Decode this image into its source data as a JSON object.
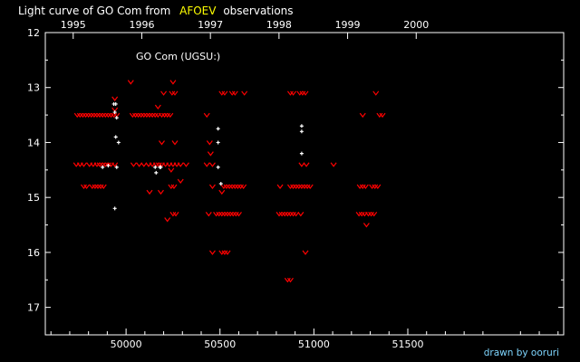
{
  "title": {
    "prefix": "Light curve of GO Com from",
    "source": "AFOEV",
    "suffix": "observations"
  },
  "credit": "drawn by ooruri",
  "colors": {
    "background": "#000000",
    "axis": "#ffffff",
    "source_highlight": "#ffff00",
    "visual_marks": "#ff0000",
    "other_marks": "#ffffff",
    "credit": "#7fd6ff"
  },
  "chart_data": {
    "type": "scatter",
    "annotation": "GO Com (UGSU:)",
    "x_axis": {
      "label": "",
      "range": [
        49570,
        52330
      ],
      "ticks": [
        50000,
        50500,
        51000,
        51500
      ],
      "tick_labels": [
        "50000",
        "50500",
        "51000",
        "51500"
      ]
    },
    "top_axis": {
      "ticks": [
        1995,
        1996,
        1997,
        1998,
        1999,
        2000
      ],
      "tick_labels": [
        "1995",
        "1996",
        "1997",
        "1998",
        "1999",
        "2000"
      ]
    },
    "y_axis": {
      "label": "",
      "range": [
        12,
        17.5
      ],
      "inverted": true,
      "ticks": [
        12,
        13,
        14,
        15,
        16,
        17
      ],
      "tick_labels": [
        "12",
        "13",
        "14",
        "15",
        "16",
        "17"
      ]
    },
    "grid": false,
    "series": [
      {
        "marker": "v",
        "color": "#ff0000",
        "points": [
          [
            49740,
            13.5
          ],
          [
            49755,
            13.5
          ],
          [
            49770,
            13.5
          ],
          [
            49785,
            13.5
          ],
          [
            49800,
            13.5
          ],
          [
            49815,
            13.5
          ],
          [
            49830,
            13.5
          ],
          [
            49845,
            13.5
          ],
          [
            49860,
            13.5
          ],
          [
            49875,
            13.5
          ],
          [
            49890,
            13.5
          ],
          [
            49905,
            13.5
          ],
          [
            49920,
            13.5
          ],
          [
            49935,
            13.5
          ],
          [
            49950,
            13.5
          ],
          [
            49735,
            14.4
          ],
          [
            49755,
            14.4
          ],
          [
            49775,
            14.4
          ],
          [
            49805,
            14.4
          ],
          [
            49825,
            14.4
          ],
          [
            49845,
            14.4
          ],
          [
            49860,
            14.4
          ],
          [
            49875,
            14.4
          ],
          [
            49890,
            14.4
          ],
          [
            49905,
            14.4
          ],
          [
            49920,
            14.4
          ],
          [
            49940,
            14.4
          ],
          [
            49775,
            14.8
          ],
          [
            49790,
            14.8
          ],
          [
            49820,
            14.8
          ],
          [
            49835,
            14.8
          ],
          [
            49850,
            14.8
          ],
          [
            49865,
            14.8
          ],
          [
            49880,
            14.8
          ],
          [
            49940,
            13.2
          ],
          [
            49940,
            13.4
          ],
          [
            50025,
            12.9
          ],
          [
            50035,
            13.5
          ],
          [
            50050,
            13.5
          ],
          [
            50065,
            13.5
          ],
          [
            50080,
            13.5
          ],
          [
            50095,
            13.5
          ],
          [
            50110,
            13.5
          ],
          [
            50125,
            13.5
          ],
          [
            50140,
            13.5
          ],
          [
            50155,
            13.5
          ],
          [
            50170,
            13.5
          ],
          [
            50170,
            13.35
          ],
          [
            50190,
            13.5
          ],
          [
            50205,
            13.5
          ],
          [
            50220,
            13.5
          ],
          [
            50235,
            13.5
          ],
          [
            50040,
            14.4
          ],
          [
            50070,
            14.4
          ],
          [
            50095,
            14.4
          ],
          [
            50120,
            14.4
          ],
          [
            50140,
            14.4
          ],
          [
            50160,
            14.4
          ],
          [
            50175,
            14.4
          ],
          [
            50190,
            14.4
          ],
          [
            50210,
            14.4
          ],
          [
            50230,
            14.4
          ],
          [
            50250,
            14.4
          ],
          [
            50270,
            14.4
          ],
          [
            50290,
            14.4
          ],
          [
            50125,
            14.9
          ],
          [
            50185,
            14.9
          ],
          [
            50200,
            13.1
          ],
          [
            50245,
            13.1
          ],
          [
            50260,
            13.1
          ],
          [
            50250,
            12.9
          ],
          [
            50190,
            14.0
          ],
          [
            50260,
            14.0
          ],
          [
            50240,
            14.5
          ],
          [
            50290,
            14.7
          ],
          [
            50240,
            14.8
          ],
          [
            50255,
            14.8
          ],
          [
            50250,
            15.3
          ],
          [
            50265,
            15.3
          ],
          [
            50220,
            15.4
          ],
          [
            50320,
            14.4
          ],
          [
            50430,
            14.4
          ],
          [
            50460,
            14.4
          ],
          [
            50450,
            14.2
          ],
          [
            50445,
            14.0
          ],
          [
            50430,
            13.5
          ],
          [
            50510,
            13.1
          ],
          [
            50525,
            13.1
          ],
          [
            50565,
            13.1
          ],
          [
            50580,
            13.1
          ],
          [
            50630,
            13.1
          ],
          [
            50460,
            14.8
          ],
          [
            50520,
            14.8
          ],
          [
            50535,
            14.8
          ],
          [
            50550,
            14.8
          ],
          [
            50565,
            14.8
          ],
          [
            50580,
            14.8
          ],
          [
            50595,
            14.8
          ],
          [
            50610,
            14.8
          ],
          [
            50625,
            14.8
          ],
          [
            50510,
            14.9
          ],
          [
            50440,
            15.3
          ],
          [
            50480,
            15.3
          ],
          [
            50495,
            15.3
          ],
          [
            50510,
            15.3
          ],
          [
            50525,
            15.3
          ],
          [
            50540,
            15.3
          ],
          [
            50555,
            15.3
          ],
          [
            50570,
            15.3
          ],
          [
            50585,
            15.3
          ],
          [
            50600,
            15.3
          ],
          [
            50460,
            16.0
          ],
          [
            50510,
            16.0
          ],
          [
            50525,
            16.0
          ],
          [
            50540,
            16.0
          ],
          [
            50875,
            13.1
          ],
          [
            50890,
            13.1
          ],
          [
            50925,
            13.1
          ],
          [
            50940,
            13.1
          ],
          [
            50955,
            13.1
          ],
          [
            50820,
            14.8
          ],
          [
            50875,
            14.8
          ],
          [
            50890,
            14.8
          ],
          [
            50905,
            14.8
          ],
          [
            50920,
            14.8
          ],
          [
            50935,
            14.8
          ],
          [
            50950,
            14.8
          ],
          [
            50965,
            14.8
          ],
          [
            50980,
            14.8
          ],
          [
            50935,
            14.4
          ],
          [
            50960,
            14.4
          ],
          [
            51105,
            14.4
          ],
          [
            50815,
            15.3
          ],
          [
            50830,
            15.3
          ],
          [
            50845,
            15.3
          ],
          [
            50860,
            15.3
          ],
          [
            50875,
            15.3
          ],
          [
            50890,
            15.3
          ],
          [
            50905,
            15.3
          ],
          [
            50930,
            15.3
          ],
          [
            50860,
            16.5
          ],
          [
            50875,
            16.5
          ],
          [
            50955,
            16.0
          ],
          [
            51260,
            13.5
          ],
          [
            51330,
            13.1
          ],
          [
            51350,
            13.5
          ],
          [
            51365,
            13.5
          ],
          [
            51240,
            15.3
          ],
          [
            51255,
            15.3
          ],
          [
            51270,
            15.3
          ],
          [
            51290,
            15.3
          ],
          [
            51305,
            15.3
          ],
          [
            51320,
            15.3
          ],
          [
            51280,
            15.5
          ],
          [
            51245,
            14.8
          ],
          [
            51260,
            14.8
          ],
          [
            51275,
            14.8
          ],
          [
            51310,
            14.8
          ],
          [
            51325,
            14.8
          ],
          [
            51340,
            14.8
          ]
        ]
      },
      {
        "marker": "+",
        "color": "#ffffff",
        "points": [
          [
            49935,
            13.3
          ],
          [
            49945,
            13.3
          ],
          [
            49940,
            13.45
          ],
          [
            49950,
            13.55
          ],
          [
            49945,
            13.9
          ],
          [
            49960,
            14.0
          ],
          [
            49875,
            14.45
          ],
          [
            49905,
            14.42
          ],
          [
            49950,
            14.45
          ],
          [
            49940,
            15.2
          ],
          [
            50155,
            14.45
          ],
          [
            50160,
            14.55
          ],
          [
            50180,
            14.45
          ],
          [
            50185,
            14.45
          ],
          [
            50490,
            13.75
          ],
          [
            50490,
            14.0
          ],
          [
            50490,
            14.45
          ],
          [
            50505,
            14.75
          ],
          [
            50935,
            13.7
          ],
          [
            50935,
            13.8
          ],
          [
            50935,
            14.2
          ]
        ]
      }
    ]
  }
}
